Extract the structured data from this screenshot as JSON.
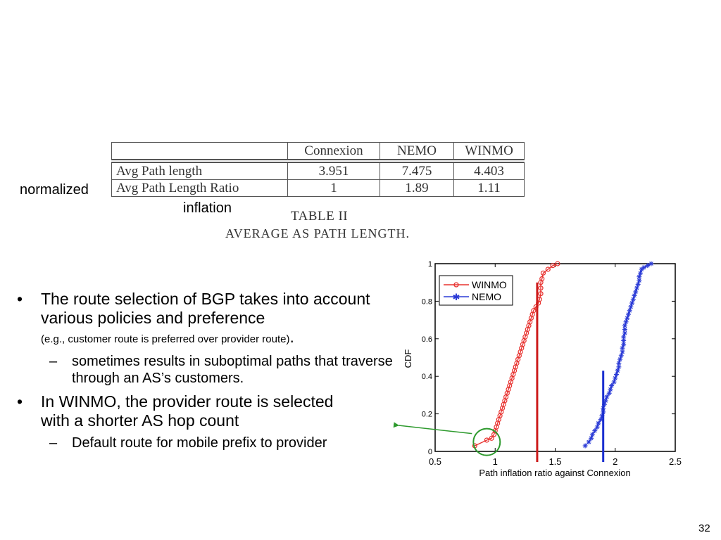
{
  "table": {
    "header": [
      "",
      "Connexion",
      "NEMO",
      "WINMO"
    ],
    "rows": [
      {
        "label": "Avg Path length",
        "values": [
          "3.951",
          "7.475",
          "4.403"
        ]
      },
      {
        "label": "Avg Path Length Ratio",
        "values": [
          "1",
          "1.89",
          "1.11"
        ]
      }
    ],
    "caption_title": "TABLE II",
    "caption_subtitle": "AVERAGE AS PATH LENGTH."
  },
  "annotations": {
    "normalized": "normalized",
    "inflation": "inflation"
  },
  "bullets": [
    {
      "text": "The route selection of BGP takes into account various policies and preference",
      "small": "(e.g., customer route is preferred over provider route)",
      "end": ".",
      "subs": [
        "sometimes results in suboptimal paths that traverse through an AS’s customers."
      ]
    },
    {
      "text": "In WINMO, the provider route is selected with a shorter AS hop count",
      "subs": [
        "Default route for mobile prefix to provider"
      ]
    }
  ],
  "bullet_marker": "•",
  "sub_marker": "–",
  "page_number": "32",
  "chart_data": {
    "type": "line",
    "xlabel": "Path inflation ratio against Connexion",
    "ylabel": "CDF",
    "xlim": [
      0.5,
      2.5
    ],
    "ylim": [
      0,
      1
    ],
    "xticks": [
      0.5,
      1,
      1.5,
      2,
      2.5
    ],
    "xtick_labels": [
      "0.5",
      "1",
      "1.5",
      "2",
      "2.5"
    ],
    "yticks": [
      0,
      0.2,
      0.4,
      0.6,
      0.8,
      1
    ],
    "ytick_labels": [
      "0",
      "0.2",
      "0.4",
      "0.6",
      "0.8",
      "1"
    ],
    "legend_position": "top-left",
    "series": [
      {
        "name": "WINMO",
        "color": "#e8322f",
        "marker": "circle",
        "x": [
          0.83,
          0.93,
          0.97,
          0.99,
          1.0,
          1.01,
          1.02,
          1.03,
          1.04,
          1.05,
          1.06,
          1.07,
          1.08,
          1.09,
          1.1,
          1.11,
          1.12,
          1.13,
          1.14,
          1.15,
          1.16,
          1.17,
          1.18,
          1.19,
          1.2,
          1.21,
          1.22,
          1.23,
          1.24,
          1.25,
          1.26,
          1.27,
          1.28,
          1.29,
          1.3,
          1.31,
          1.32,
          1.34,
          1.36,
          1.37,
          1.38,
          1.38,
          1.38,
          1.39,
          1.4,
          1.44,
          1.48,
          1.52
        ],
        "y": [
          0.03,
          0.06,
          0.07,
          0.09,
          0.11,
          0.13,
          0.15,
          0.17,
          0.19,
          0.21,
          0.23,
          0.25,
          0.27,
          0.29,
          0.31,
          0.33,
          0.35,
          0.37,
          0.39,
          0.41,
          0.43,
          0.45,
          0.47,
          0.49,
          0.51,
          0.53,
          0.55,
          0.57,
          0.59,
          0.61,
          0.63,
          0.65,
          0.67,
          0.69,
          0.71,
          0.73,
          0.75,
          0.77,
          0.79,
          0.81,
          0.84,
          0.87,
          0.9,
          0.92,
          0.95,
          0.97,
          0.99,
          1.0
        ]
      },
      {
        "name": "NEMO",
        "color": "#2b3bd6",
        "marker": "star",
        "x": [
          1.75,
          1.78,
          1.8,
          1.81,
          1.83,
          1.85,
          1.86,
          1.88,
          1.89,
          1.9,
          1.9,
          1.91,
          1.92,
          1.93,
          1.95,
          1.96,
          1.97,
          1.99,
          2.0,
          2.01,
          2.02,
          2.03,
          2.03,
          2.04,
          2.05,
          2.06,
          2.06,
          2.07,
          2.07,
          2.07,
          2.08,
          2.08,
          2.08,
          2.09,
          2.1,
          2.11,
          2.12,
          2.13,
          2.14,
          2.15,
          2.16,
          2.17,
          2.18,
          2.19,
          2.2,
          2.2,
          2.21,
          2.22,
          2.24,
          2.27,
          2.3
        ],
        "y": [
          0.03,
          0.05,
          0.07,
          0.09,
          0.11,
          0.13,
          0.15,
          0.17,
          0.19,
          0.21,
          0.23,
          0.25,
          0.27,
          0.29,
          0.31,
          0.33,
          0.35,
          0.37,
          0.39,
          0.41,
          0.43,
          0.45,
          0.47,
          0.49,
          0.51,
          0.53,
          0.55,
          0.57,
          0.59,
          0.61,
          0.63,
          0.65,
          0.67,
          0.69,
          0.71,
          0.73,
          0.75,
          0.77,
          0.79,
          0.81,
          0.83,
          0.85,
          0.87,
          0.89,
          0.91,
          0.93,
          0.95,
          0.97,
          0.98,
          0.99,
          1.0
        ]
      }
    ],
    "reference_lines": [
      {
        "x": 1.35,
        "y_top": 0.9,
        "color": "#cc1b1b"
      },
      {
        "x": 1.9,
        "y_top": 0.43,
        "color": "#1a2fd0"
      }
    ],
    "highlight_circle": {
      "x": 0.93,
      "y": 0.05,
      "color": "#2e9a2e"
    }
  }
}
